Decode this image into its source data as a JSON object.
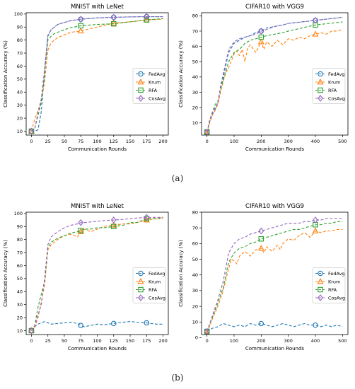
{
  "figure": {
    "caption_a": "(a)",
    "caption_b": "(b)"
  },
  "colors": {
    "FedAvg": "#1f77b4",
    "Krum": "#ff7f0e",
    "RFA": "#2ca02c",
    "CosAvg": "#9467bd",
    "axis": "#000000",
    "text": "#000000"
  },
  "chart_data": [
    {
      "type": "line",
      "panel": "a",
      "title": "MNIST with LeNet",
      "xlabel": "Communication Rounds",
      "ylabel": "Classification Accuracy (%)",
      "xlim": [
        -8,
        208
      ],
      "ylim": [
        7,
        101
      ],
      "xticks": [
        0,
        25,
        50,
        75,
        100,
        125,
        150,
        175,
        200
      ],
      "yticks": [
        10,
        20,
        30,
        40,
        50,
        60,
        70,
        80,
        90,
        100
      ],
      "legend": "center-right",
      "grid": false,
      "series": [
        {
          "name": "FedAvg",
          "color": "#1f77b4",
          "marker": "circle",
          "markers_x": [
            0,
            75,
            125,
            175
          ],
          "x": [
            0,
            5,
            10,
            15,
            20,
            25,
            30,
            35,
            40,
            50,
            60,
            75,
            100,
            125,
            150,
            175,
            200
          ],
          "y": [
            10,
            10,
            11,
            25,
            55,
            83,
            88,
            90,
            92,
            93.5,
            95,
            96,
            97,
            97.5,
            97.8,
            98,
            98
          ]
        },
        {
          "name": "Krum",
          "color": "#ff7f0e",
          "marker": "triangle",
          "markers_x": [
            0,
            75,
            125,
            175
          ],
          "x": [
            0,
            5,
            10,
            15,
            20,
            25,
            30,
            35,
            40,
            50,
            60,
            75,
            100,
            125,
            150,
            175,
            200
          ],
          "y": [
            10,
            19,
            26,
            33,
            48,
            72,
            78,
            80,
            82,
            84,
            86,
            87,
            90,
            93,
            94,
            95.5,
            96
          ]
        },
        {
          "name": "RFA",
          "color": "#2ca02c",
          "marker": "square",
          "markers_x": [
            0,
            75,
            125,
            175
          ],
          "x": [
            0,
            5,
            10,
            15,
            20,
            25,
            30,
            35,
            40,
            50,
            60,
            75,
            100,
            125,
            150,
            175,
            200
          ],
          "y": [
            10,
            12,
            22,
            32,
            55,
            80,
            83,
            85,
            86,
            88,
            89.5,
            91,
            92,
            92.5,
            94,
            95.5,
            96.5
          ]
        },
        {
          "name": "CosAvg",
          "color": "#9467bd",
          "marker": "diamond",
          "markers_x": [
            0,
            75,
            125,
            175
          ],
          "x": [
            0,
            5,
            10,
            15,
            20,
            25,
            30,
            35,
            40,
            50,
            60,
            75,
            100,
            125,
            150,
            175,
            200
          ],
          "y": [
            10,
            12,
            24,
            35,
            58,
            84,
            88,
            90,
            92,
            93.5,
            95,
            96,
            97,
            97.5,
            97.8,
            98,
            98
          ]
        }
      ]
    },
    {
      "type": "line",
      "panel": "a",
      "title": "CIFAR10 with VGG9",
      "xlabel": "Communication Rounds",
      "ylabel": "Classification Accuracy (%)",
      "xlim": [
        -20,
        520
      ],
      "ylim": [
        2,
        82
      ],
      "xticks": [
        0,
        100,
        200,
        300,
        400,
        500
      ],
      "yticks": [
        10,
        20,
        30,
        40,
        50,
        60,
        70,
        80
      ],
      "legend": "center-right",
      "grid": false,
      "series": [
        {
          "name": "FedAvg",
          "color": "#1f77b4",
          "marker": "circle",
          "markers_x": [
            0,
            200,
            400
          ],
          "x": [
            0,
            10,
            20,
            30,
            40,
            50,
            60,
            70,
            80,
            100,
            120,
            140,
            160,
            180,
            200,
            220,
            250,
            280,
            300,
            350,
            400,
            450,
            500
          ],
          "y": [
            4,
            11,
            16,
            19,
            23,
            33,
            40,
            48,
            56,
            62,
            64,
            66,
            67,
            69,
            70,
            72,
            73,
            74,
            75,
            76,
            77,
            78,
            79
          ]
        },
        {
          "name": "Krum",
          "color": "#ff7f0e",
          "marker": "triangle",
          "markers_x": [
            0,
            200,
            400
          ],
          "x": [
            0,
            10,
            20,
            30,
            40,
            50,
            60,
            70,
            80,
            100,
            110,
            120,
            130,
            140,
            150,
            160,
            180,
            200,
            210,
            220,
            240,
            260,
            280,
            300,
            320,
            340,
            360,
            380,
            400,
            420,
            440,
            460,
            480,
            500
          ],
          "y": [
            3,
            10,
            15,
            18,
            22,
            30,
            37,
            43,
            46,
            55,
            57,
            54,
            58,
            50,
            59,
            61,
            56,
            63,
            58,
            63,
            60,
            64,
            61,
            65,
            64,
            66,
            65,
            67,
            68,
            69,
            68,
            70,
            70,
            71
          ]
        },
        {
          "name": "RFA",
          "color": "#2ca02c",
          "marker": "square",
          "markers_x": [
            0,
            200,
            400
          ],
          "x": [
            0,
            10,
            20,
            30,
            40,
            50,
            60,
            70,
            80,
            100,
            120,
            140,
            160,
            180,
            200,
            220,
            250,
            280,
            300,
            350,
            400,
            450,
            500
          ],
          "y": [
            4,
            11,
            17,
            22,
            24,
            32,
            38,
            44,
            50,
            56,
            58,
            62,
            64,
            65,
            66,
            67,
            68,
            69,
            70,
            72,
            74,
            75,
            76
          ]
        },
        {
          "name": "CosAvg",
          "color": "#9467bd",
          "marker": "diamond",
          "markers_x": [
            0,
            200,
            400
          ],
          "x": [
            0,
            10,
            20,
            30,
            40,
            50,
            60,
            70,
            80,
            100,
            120,
            140,
            160,
            180,
            200,
            220,
            250,
            280,
            300,
            350,
            400,
            450,
            500
          ],
          "y": [
            4,
            12,
            17,
            20,
            23,
            34,
            42,
            50,
            58,
            63,
            65,
            66,
            67,
            68,
            70,
            71,
            73,
            74,
            75,
            76,
            77,
            78,
            79
          ]
        }
      ]
    },
    {
      "type": "line",
      "panel": "b",
      "title": "MNIST with LeNet",
      "xlabel": "Communication Rounds",
      "ylabel": "Classification Accuracy (%)",
      "xlim": [
        -8,
        208
      ],
      "ylim": [
        7,
        101
      ],
      "xticks": [
        0,
        25,
        50,
        75,
        100,
        125,
        150,
        175,
        200
      ],
      "yticks": [
        10,
        20,
        30,
        40,
        50,
        60,
        70,
        80,
        90,
        100
      ],
      "legend": "center-right",
      "grid": false,
      "series": [
        {
          "name": "FedAvg",
          "color": "#1f77b4",
          "marker": "circle",
          "markers_x": [
            0,
            75,
            125,
            175
          ],
          "x": [
            0,
            5,
            10,
            15,
            20,
            25,
            30,
            40,
            50,
            60,
            70,
            75,
            80,
            90,
            100,
            110,
            125,
            140,
            150,
            160,
            175,
            190,
            200
          ],
          "y": [
            10,
            13,
            15,
            16,
            17,
            16,
            15,
            15.5,
            16,
            16.5,
            15.5,
            14,
            13,
            14,
            15,
            14.5,
            15.5,
            16.5,
            17,
            16.5,
            16,
            15,
            15
          ]
        },
        {
          "name": "Krum",
          "color": "#ff7f0e",
          "marker": "triangle",
          "markers_x": [
            0,
            75,
            125,
            175
          ],
          "x": [
            0,
            5,
            10,
            15,
            20,
            25,
            30,
            40,
            50,
            60,
            70,
            75,
            80,
            90,
            100,
            110,
            125,
            140,
            150,
            160,
            175,
            190,
            200
          ],
          "y": [
            10,
            12,
            20,
            32,
            45,
            72,
            76,
            80,
            83,
            84,
            82,
            86,
            88,
            86,
            88,
            90,
            91,
            92,
            92,
            93,
            95,
            96,
            97
          ]
        },
        {
          "name": "RFA",
          "color": "#2ca02c",
          "marker": "square",
          "markers_x": [
            0,
            75,
            125,
            175
          ],
          "x": [
            0,
            5,
            10,
            15,
            20,
            25,
            30,
            40,
            50,
            60,
            70,
            75,
            80,
            90,
            100,
            110,
            125,
            140,
            150,
            160,
            175,
            190,
            200
          ],
          "y": [
            10,
            14,
            28,
            38,
            48,
            74,
            78,
            81,
            83,
            85,
            86,
            87,
            88,
            88,
            89,
            89,
            90,
            91,
            93,
            93,
            96,
            96,
            96
          ]
        },
        {
          "name": "CosAvg",
          "color": "#9467bd",
          "marker": "diamond",
          "markers_x": [
            0,
            75,
            125,
            175
          ],
          "x": [
            0,
            5,
            10,
            15,
            20,
            25,
            30,
            40,
            50,
            60,
            70,
            75,
            80,
            90,
            100,
            110,
            125,
            140,
            150,
            160,
            175,
            190,
            200
          ],
          "y": [
            10,
            14,
            22,
            30,
            50,
            76,
            82,
            86,
            89,
            91,
            92,
            93,
            93,
            93.5,
            94,
            94.5,
            95,
            95.5,
            96,
            96.5,
            97,
            97,
            97
          ]
        }
      ]
    },
    {
      "type": "line",
      "panel": "b",
      "title": "CIFAR10 with VGG9",
      "xlabel": "Communication Rounds",
      "ylabel": "Classification Accuracy (%)",
      "xlim": [
        -20,
        520
      ],
      "ylim": [
        2,
        80
      ],
      "xticks": [
        0,
        100,
        200,
        300,
        400,
        500
      ],
      "yticks": [
        0,
        10,
        20,
        30,
        40,
        50,
        60,
        70,
        80
      ],
      "legend": "center-right",
      "grid": false,
      "series": [
        {
          "name": "FedAvg",
          "color": "#1f77b4",
          "marker": "circle",
          "markers_x": [
            0,
            200,
            400
          ],
          "x": [
            0,
            20,
            40,
            60,
            80,
            100,
            120,
            140,
            160,
            180,
            200,
            220,
            240,
            260,
            280,
            300,
            320,
            340,
            360,
            380,
            400,
            420,
            440,
            460,
            480,
            500
          ],
          "y": [
            4,
            6,
            7,
            9,
            8,
            7,
            8,
            7,
            9,
            8,
            9,
            8,
            7,
            8,
            9,
            8,
            7,
            8,
            9,
            8,
            8,
            7,
            8,
            7,
            8,
            7
          ]
        },
        {
          "name": "Krum",
          "color": "#ff7f0e",
          "marker": "triangle",
          "markers_x": [
            0,
            200,
            400
          ],
          "x": [
            0,
            20,
            40,
            60,
            80,
            90,
            100,
            110,
            120,
            140,
            160,
            180,
            200,
            210,
            220,
            240,
            260,
            270,
            280,
            300,
            320,
            340,
            360,
            380,
            400,
            420,
            440,
            460,
            480,
            500
          ],
          "y": [
            3,
            12,
            20,
            30,
            44,
            50,
            49,
            47,
            52,
            55,
            52,
            56,
            57,
            54,
            58,
            55,
            59,
            56,
            60,
            63,
            62,
            65,
            67,
            64,
            68,
            67,
            68,
            68,
            69,
            69
          ]
        },
        {
          "name": "RFA",
          "color": "#2ca02c",
          "marker": "square",
          "markers_x": [
            0,
            200,
            400
          ],
          "x": [
            0,
            20,
            40,
            60,
            80,
            100,
            120,
            140,
            160,
            180,
            200,
            220,
            240,
            260,
            280,
            300,
            320,
            340,
            360,
            380,
            400,
            420,
            440,
            460,
            480,
            500
          ],
          "y": [
            4,
            13,
            22,
            32,
            48,
            54,
            57,
            58,
            60,
            61,
            63,
            64,
            65,
            66,
            67,
            68,
            69,
            69,
            70,
            71,
            72,
            72,
            73,
            73,
            74,
            74
          ]
        },
        {
          "name": "CosAvg",
          "color": "#9467bd",
          "marker": "diamond",
          "markers_x": [
            0,
            200,
            400
          ],
          "x": [
            0,
            20,
            40,
            60,
            80,
            100,
            120,
            140,
            160,
            180,
            200,
            220,
            240,
            260,
            280,
            300,
            320,
            340,
            360,
            380,
            400,
            420,
            440,
            460,
            480,
            500
          ],
          "y": [
            4,
            14,
            24,
            36,
            54,
            60,
            63,
            64,
            66,
            67,
            68,
            69,
            70,
            71,
            72,
            73,
            73,
            73,
            74,
            74,
            75,
            75,
            76,
            76,
            76,
            76
          ]
        }
      ]
    }
  ]
}
